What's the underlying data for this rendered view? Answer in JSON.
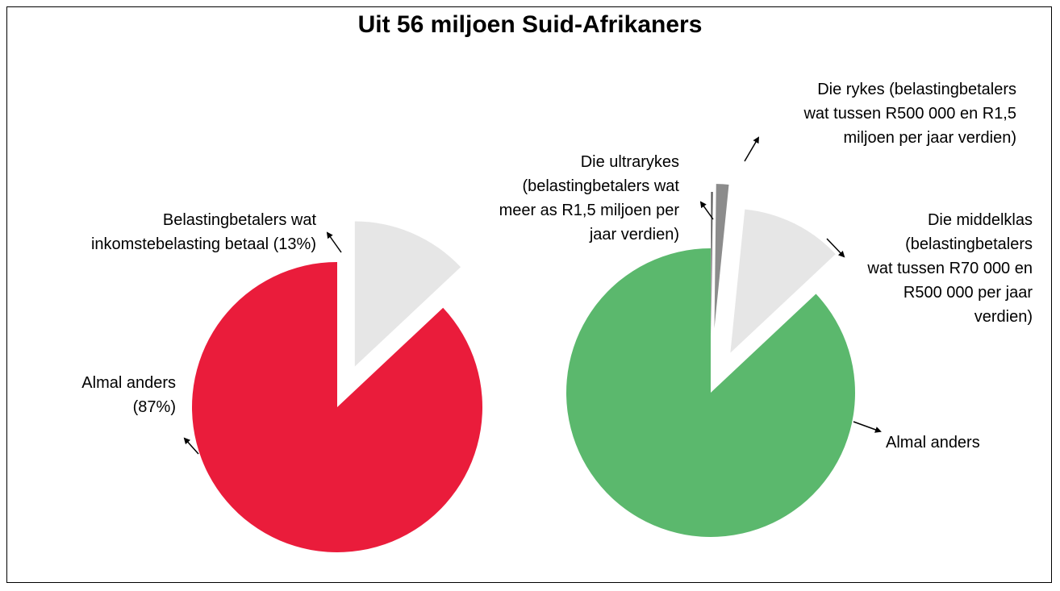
{
  "title": "Uit 56 miljoen Suid-Afrikaners",
  "chart_data": [
    {
      "type": "pie",
      "categories": [
        "Belastingbetalers wat\ninkomstebelasting betaal (13%)",
        "Almal anders\n(87%)"
      ],
      "values": [
        13,
        87
      ],
      "colors": [
        "#e6e6e6",
        "#ea1c3b"
      ]
    },
    {
      "type": "pie",
      "categories": [
        "Die ultrarykes\n(belastingbetalers wat\nmeer as R1,5 miljoen per\njaar verdien)",
        "Die rykes (belastingbetalers\nwat tussen R500 000 en R1,5\nmiljoen per jaar verdien)",
        "Die middelklas\n(belastingbetalers\nwat tussen R70 000 en\nR500 000 per jaar\nverdien)",
        "Almal anders"
      ],
      "values": [
        0.2,
        1.4,
        11.4,
        87
      ],
      "colors": [
        "#555555",
        "#8c8c8c",
        "#e6e6e6",
        "#5bb86d"
      ]
    }
  ]
}
